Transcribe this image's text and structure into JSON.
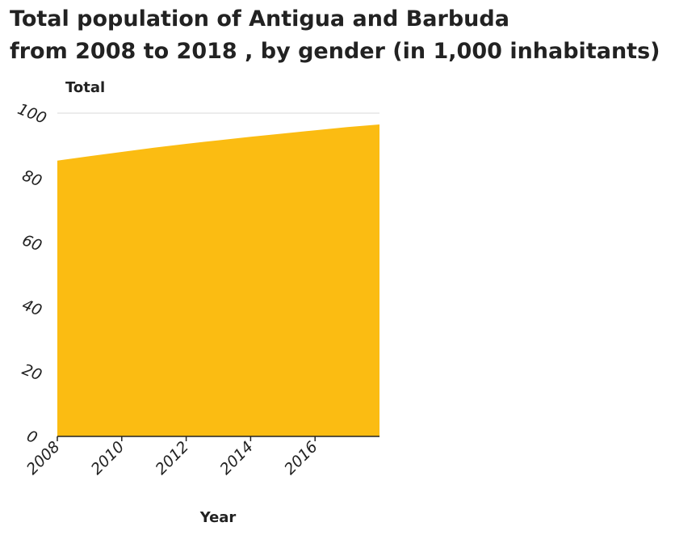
{
  "chart_data": {
    "type": "area",
    "title_lines": [
      "Total population of Antigua and Barbuda",
      "from 2008 to 2018 , by gender (in 1,000 inhabitants)"
    ],
    "ylabel": "Total",
    "xlabel": "Year",
    "series": [
      {
        "x": [
          2008,
          2009,
          2010,
          2011,
          2012,
          2013,
          2014,
          2015,
          2016,
          2017,
          2018
        ],
        "values": [
          85.3,
          86.7,
          88.0,
          89.3,
          90.5,
          91.6,
          92.7,
          93.7,
          94.7,
          95.7,
          96.5
        ]
      }
    ],
    "xlim": [
      2008,
      2018
    ],
    "ylim": [
      0,
      100
    ],
    "x_ticks": [
      2008,
      2010,
      2012,
      2014,
      2016
    ],
    "y_ticks": [
      0,
      20,
      40,
      60,
      80,
      100
    ],
    "grid": "horizontal",
    "fill_color": "#fbbc12",
    "axis_color": "#222222",
    "grid_color": "#d9d9d9"
  }
}
